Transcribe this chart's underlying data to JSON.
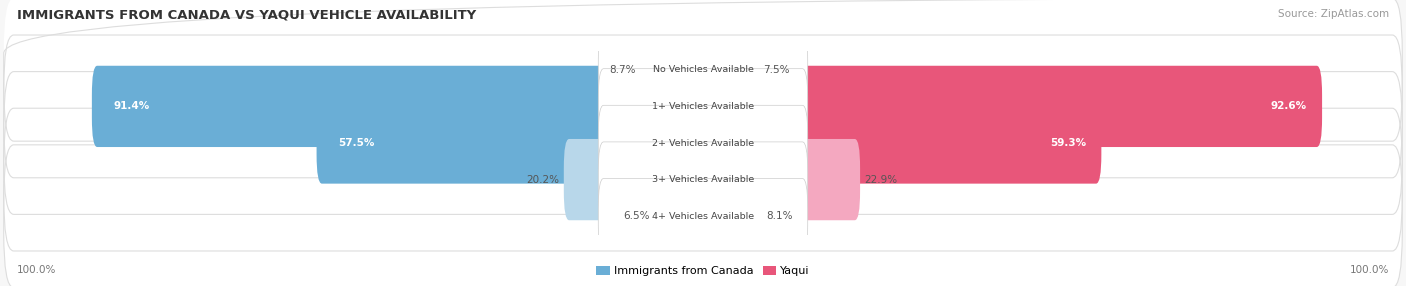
{
  "title": "IMMIGRANTS FROM CANADA VS YAQUI VEHICLE AVAILABILITY",
  "source": "Source: ZipAtlas.com",
  "categories": [
    "No Vehicles Available",
    "1+ Vehicles Available",
    "2+ Vehicles Available",
    "3+ Vehicles Available",
    "4+ Vehicles Available"
  ],
  "left_values": [
    8.7,
    91.4,
    57.5,
    20.2,
    6.5
  ],
  "right_values": [
    7.5,
    92.6,
    59.3,
    22.9,
    8.1
  ],
  "left_color_strong": "#6aaed6",
  "left_color_light": "#b8d7ea",
  "right_color_strong": "#e8567a",
  "right_color_light": "#f4a8c0",
  "strong_threshold": 50,
  "legend_left": "Immigrants from Canada",
  "legend_right": "Yaqui",
  "axis_label_left": "100.0%",
  "axis_label_right": "100.0%",
  "fig_bg": "#f7f7f7",
  "row_bg": "#ececec",
  "bar_bg": "#f9f9f9"
}
